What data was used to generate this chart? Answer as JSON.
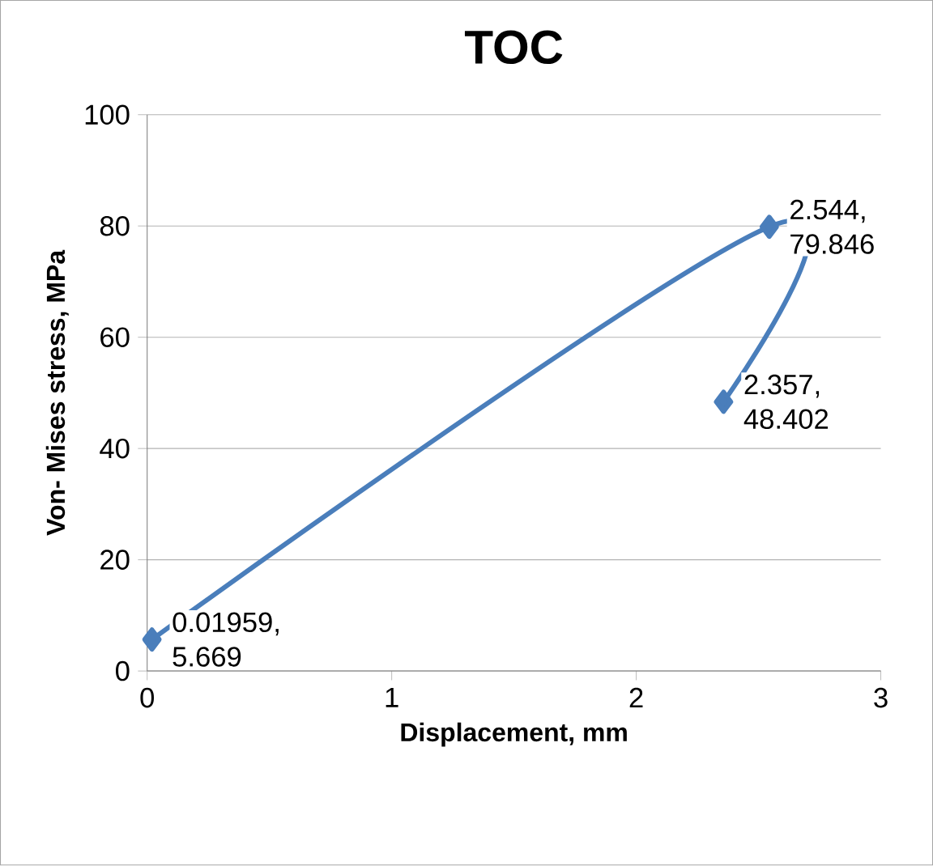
{
  "chart_data": {
    "type": "line",
    "title": "TOC",
    "xlabel": "Displacement, mm",
    "ylabel": "Von- Mises stress, MPa",
    "x": [
      0.01959,
      2.544,
      2.357
    ],
    "values": [
      5.669,
      79.846,
      48.402
    ],
    "value_labels": [
      "0.01959, 5.669",
      "2.544, 79.846",
      "2.357, 48.402"
    ],
    "color": "#4a7ebb",
    "marker": "diamond",
    "xlim": [
      0,
      3
    ],
    "xticks": [
      0,
      1,
      2,
      3
    ],
    "ylim": [
      0,
      100
    ],
    "yticks": [
      0,
      20,
      40,
      60,
      80,
      100
    ],
    "grid": "y"
  }
}
